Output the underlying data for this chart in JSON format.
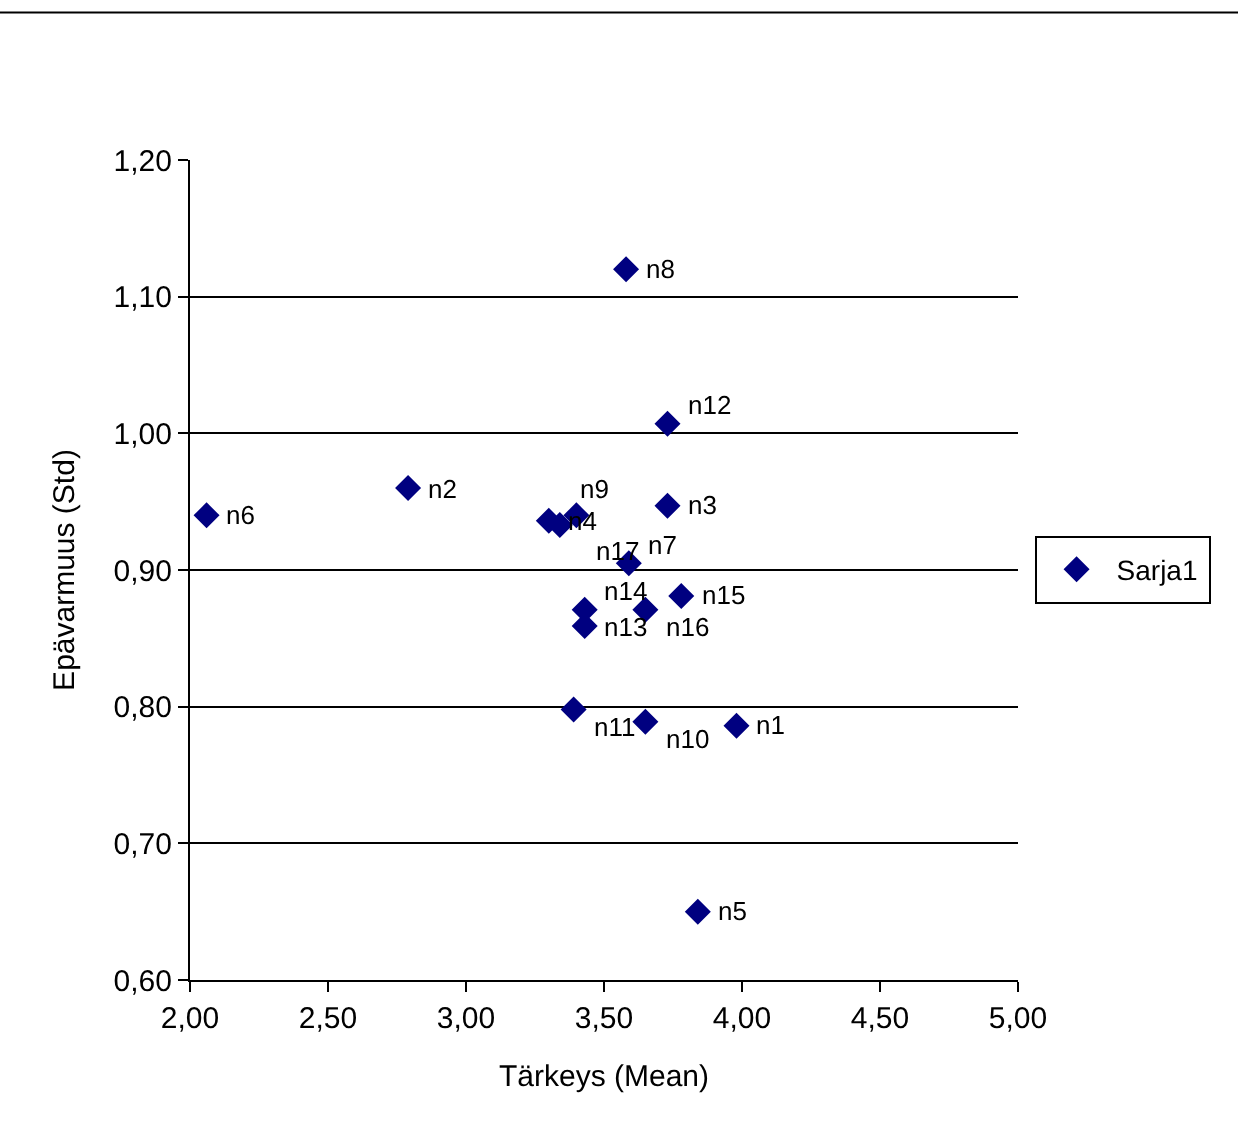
{
  "chart_data": {
    "type": "scatter",
    "xlabel": "Tärkeys (Mean)",
    "ylabel": "Epävarmuus (Std)",
    "x": [
      3.98,
      2.79,
      3.73,
      3.3,
      3.84,
      2.06,
      3.59,
      3.58,
      3.34,
      3.65,
      3.39,
      3.73,
      3.43,
      3.43,
      3.78,
      3.65,
      3.4
    ],
    "series": [
      {
        "name": "Sarja1",
        "color": "#000080",
        "values": [
          0.786,
          0.96,
          0.947,
          0.936,
          0.65,
          0.94,
          0.905,
          1.12,
          0.933,
          0.789,
          0.798,
          1.007,
          0.859,
          0.871,
          0.881,
          0.871,
          0.94
        ],
        "value_labels": [
          "n1",
          "n2",
          "n3",
          "n4",
          "n5",
          "n6",
          "n7",
          "n8",
          "n9",
          "n10",
          "n11",
          "n12",
          "n13",
          "n14",
          "n15",
          "n16",
          "n17"
        ]
      }
    ],
    "xlim": [
      2.0,
      5.0
    ],
    "xticks": [
      {
        "value": 2.0,
        "label": "2,00"
      },
      {
        "value": 2.5,
        "label": "2,50"
      },
      {
        "value": 3.0,
        "label": "3,00"
      },
      {
        "value": 3.5,
        "label": "3,50"
      },
      {
        "value": 4.0,
        "label": "4,00"
      },
      {
        "value": 4.5,
        "label": "4,50"
      },
      {
        "value": 5.0,
        "label": "5,00"
      }
    ],
    "ylim": [
      0.6,
      1.2
    ],
    "yticks": [
      {
        "value": 0.6,
        "label": "0,60"
      },
      {
        "value": 0.7,
        "label": "0,70"
      },
      {
        "value": 0.8,
        "label": "0,80"
      },
      {
        "value": 0.9,
        "label": "0,90"
      },
      {
        "value": 1.0,
        "label": "1,00"
      },
      {
        "value": 1.1,
        "label": "1,10"
      },
      {
        "value": 1.2,
        "label": "1,20"
      }
    ],
    "grid": "y",
    "legend": "right",
    "marker": "diamond"
  }
}
